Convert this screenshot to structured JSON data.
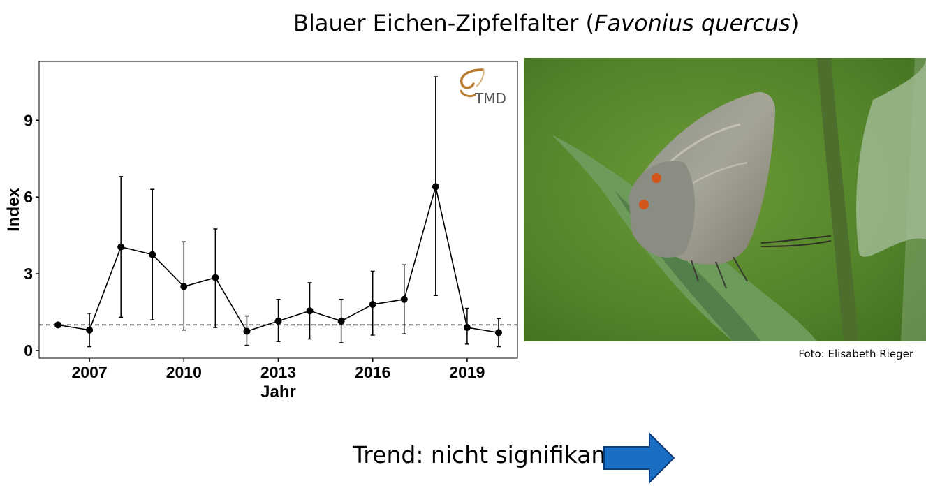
{
  "title_main": "Blauer Eichen-Zipfelfalter (",
  "title_latin": "Favonius quercus",
  "title_close": ")",
  "logo_text": "TMD",
  "photo_credit": "Foto: Elisabeth Rieger",
  "trend_label": "Trend: nicht signifikant",
  "colors": {
    "arrow": "#1a6fc4",
    "photo_bg": "#5a8a2e",
    "logo": "#b77a2f"
  },
  "chart_data": {
    "type": "line",
    "xlabel": "Jahr",
    "ylabel": "Index",
    "xlim": [
      2005.4,
      2020.6
    ],
    "ylim": [
      -0.3,
      11.3
    ],
    "xticks": [
      2007,
      2010,
      2013,
      2016,
      2019
    ],
    "yticks": [
      0,
      3,
      6,
      9
    ],
    "reference_line": 1,
    "series": [
      {
        "x": [
          2006,
          2007,
          2008,
          2009,
          2010,
          2011,
          2012,
          2013,
          2014,
          2015,
          2016,
          2017,
          2018,
          2019,
          2020
        ],
        "values": [
          1.0,
          0.8,
          4.05,
          3.75,
          2.5,
          2.85,
          0.75,
          1.15,
          1.55,
          1.15,
          1.8,
          2.0,
          6.4,
          0.9,
          0.7
        ],
        "lower": [
          1.0,
          0.15,
          1.3,
          1.2,
          0.8,
          0.9,
          0.2,
          0.35,
          0.45,
          0.3,
          0.6,
          0.65,
          2.15,
          0.25,
          0.15
        ],
        "upper": [
          1.0,
          1.45,
          6.8,
          6.3,
          4.25,
          4.75,
          1.35,
          2.0,
          2.65,
          2.0,
          3.1,
          3.35,
          10.7,
          1.65,
          1.25
        ]
      }
    ]
  }
}
